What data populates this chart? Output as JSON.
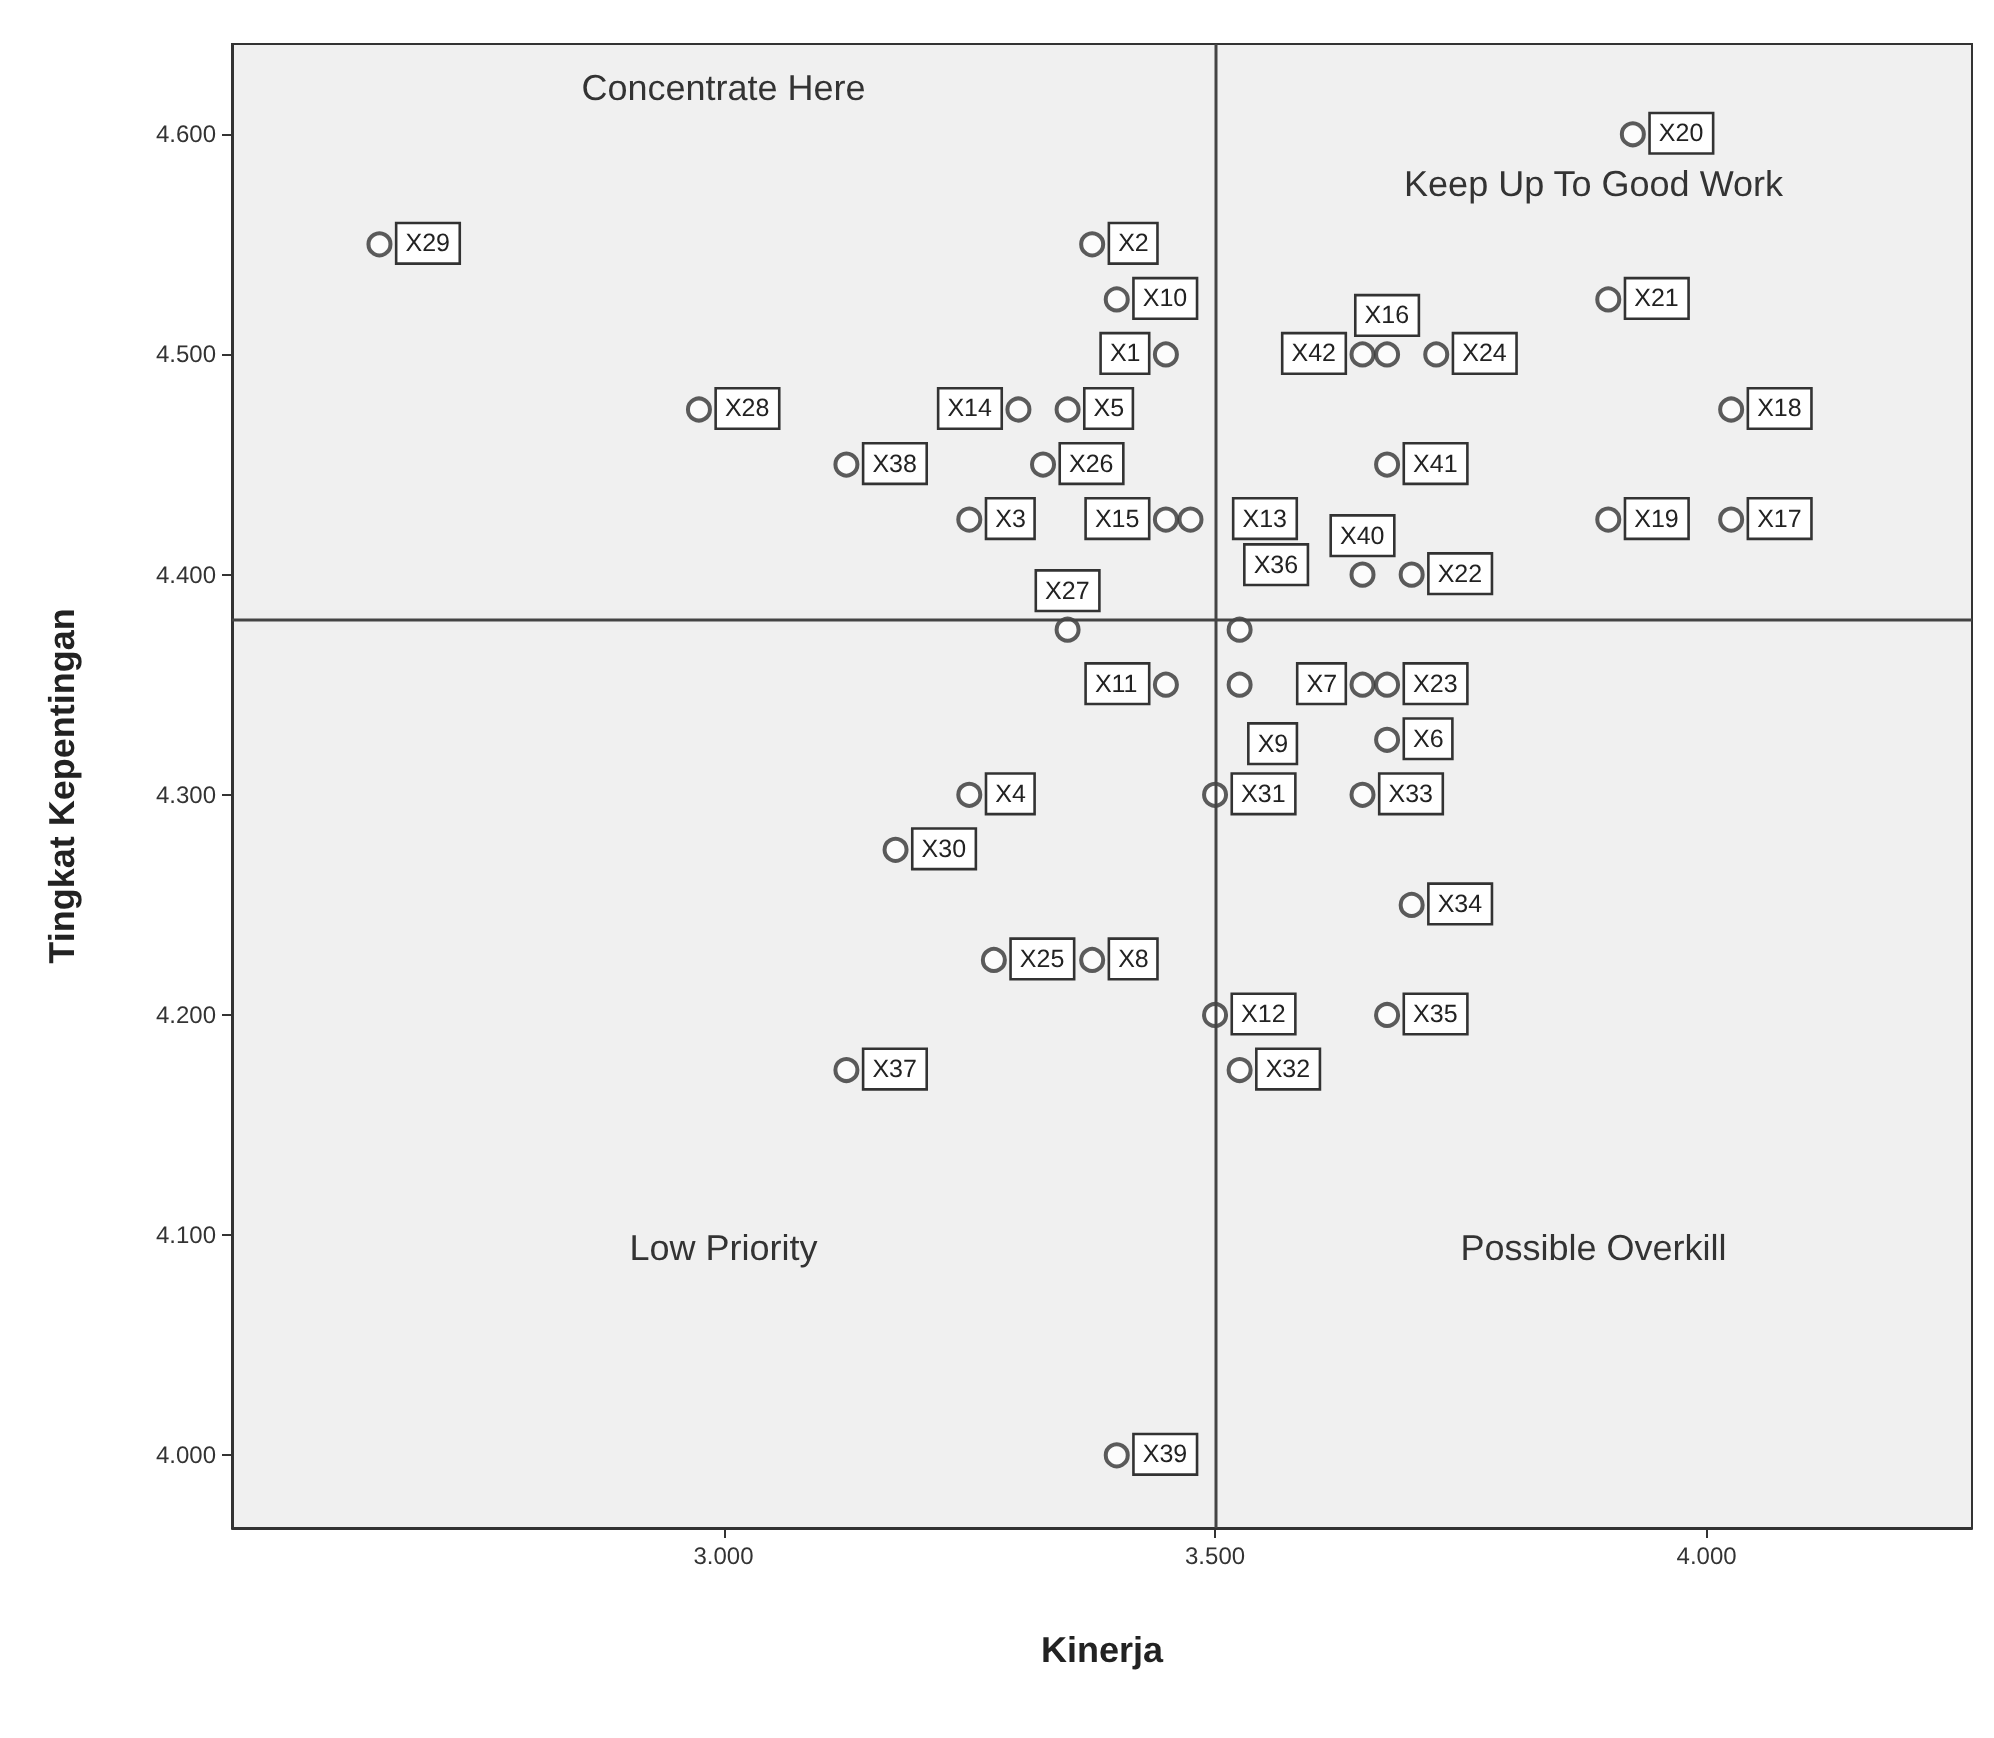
{
  "chart_data": {
    "type": "scatter",
    "xlabel": "Kinerja",
    "ylabel": "Tingkat Kepentingan",
    "x": [
      3.45,
      3.375,
      3.25,
      3.25,
      3.35,
      3.675,
      3.65,
      3.375,
      3.525,
      3.4,
      3.45,
      3.5,
      3.475,
      3.3,
      3.45,
      3.675,
      4.025,
      4.025,
      3.9,
      3.925,
      3.9,
      3.7,
      3.675,
      3.725,
      3.275,
      3.325,
      3.35,
      2.975,
      2.65,
      3.175,
      3.5,
      3.525,
      3.65,
      3.7,
      3.675,
      3.525,
      3.125,
      3.125,
      3.4,
      3.65,
      3.675,
      3.65
    ],
    "values": [
      4.5,
      4.55,
      4.425,
      4.3,
      4.475,
      4.325,
      4.35,
      4.225,
      4.35,
      4.525,
      4.35,
      4.2,
      4.425,
      4.475,
      4.425,
      4.5,
      4.425,
      4.475,
      4.425,
      4.6,
      4.525,
      4.4,
      4.35,
      4.5,
      4.225,
      4.45,
      4.375,
      4.475,
      4.55,
      4.275,
      4.3,
      4.175,
      4.3,
      4.25,
      4.2,
      4.375,
      4.175,
      4.45,
      4.0,
      4.4,
      4.45,
      4.5
    ],
    "color": "#333333",
    "marker": "circle",
    "grid": false,
    "xlim": [
      2.5,
      4.27
    ],
    "xticks": [
      {
        "value": 3,
        "label": "3.000"
      },
      {
        "value": 3.5,
        "label": "3.500"
      },
      {
        "value": 4,
        "label": "4.000"
      }
    ],
    "ylim": [
      3.967,
      4.641
    ],
    "yticks": [
      {
        "value": 4.0,
        "label": "4.000"
      },
      {
        "value": 4.1,
        "label": "4.100"
      },
      {
        "value": 4.2,
        "label": "4.200"
      },
      {
        "value": 4.3,
        "label": "4.300"
      },
      {
        "value": 4.4,
        "label": "4.400"
      },
      {
        "value": 4.5,
        "label": "4.500"
      },
      {
        "value": 4.6,
        "label": "4.600"
      }
    ],
    "ref_lines": [
      {
        "axis": "x",
        "value": 3.5,
        "color": "#444444"
      },
      {
        "axis": "y",
        "value": 4.38,
        "color": "#444444"
      }
    ],
    "annotations": [
      "Concentrate Here",
      "Keep Up To Good Work",
      "Low Priority",
      "Possible Overkill",
      {
        "text": "X1",
        "x": 3.45,
        "y": 4.5
      },
      {
        "text": "X2",
        "x": 3.375,
        "y": 4.55
      },
      {
        "text": "X3",
        "x": 3.25,
        "y": 4.425
      },
      {
        "text": "X4",
        "x": 3.25,
        "y": 4.3
      },
      {
        "text": "X5",
        "x": 3.35,
        "y": 4.475
      },
      {
        "text": "X6",
        "x": 3.675,
        "y": 4.325
      },
      {
        "text": "X7",
        "x": 3.65,
        "y": 4.35
      },
      {
        "text": "X8",
        "x": 3.375,
        "y": 4.225
      },
      {
        "text": "X9",
        "x": 3.525,
        "y": 4.35
      },
      {
        "text": "X10",
        "x": 3.4,
        "y": 4.525
      },
      {
        "text": "X11",
        "x": 3.45,
        "y": 4.35
      },
      {
        "text": "X12",
        "x": 3.5,
        "y": 4.2
      },
      {
        "text": "X13",
        "x": 3.475,
        "y": 4.425
      },
      {
        "text": "X14",
        "x": 3.3,
        "y": 4.475
      },
      {
        "text": "X15",
        "x": 3.45,
        "y": 4.425
      },
      {
        "text": "X16",
        "x": 3.675,
        "y": 4.5
      },
      {
        "text": "X17",
        "x": 4.025,
        "y": 4.425
      },
      {
        "text": "X18",
        "x": 4.025,
        "y": 4.475
      },
      {
        "text": "X19",
        "x": 3.9,
        "y": 4.425
      },
      {
        "text": "X20",
        "x": 3.925,
        "y": 4.6
      },
      {
        "text": "X21",
        "x": 3.9,
        "y": 4.525
      },
      {
        "text": "X22",
        "x": 3.7,
        "y": 4.4
      },
      {
        "text": "X23",
        "x": 3.675,
        "y": 4.35
      },
      {
        "text": "X24",
        "x": 3.725,
        "y": 4.5
      },
      {
        "text": "X25",
        "x": 3.275,
        "y": 4.225
      },
      {
        "text": "X26",
        "x": 3.325,
        "y": 4.45
      },
      {
        "text": "X27",
        "x": 3.35,
        "y": 4.375
      },
      {
        "text": "X28",
        "x": 2.975,
        "y": 4.475
      },
      {
        "text": "X29",
        "x": 2.65,
        "y": 4.55
      },
      {
        "text": "X30",
        "x": 3.175,
        "y": 4.275
      },
      {
        "text": "X31",
        "x": 3.5,
        "y": 4.3
      },
      {
        "text": "X32",
        "x": 3.525,
        "y": 4.175
      },
      {
        "text": "X33",
        "x": 3.65,
        "y": 4.3
      },
      {
        "text": "X34",
        "x": 3.7,
        "y": 4.25
      },
      {
        "text": "X35",
        "x": 3.675,
        "y": 4.2
      },
      {
        "text": "X36",
        "x": 3.525,
        "y": 4.375
      },
      {
        "text": "X37",
        "x": 3.125,
        "y": 4.175
      },
      {
        "text": "X38",
        "x": 3.125,
        "y": 4.45
      },
      {
        "text": "X39",
        "x": 3.4,
        "y": 4.0
      },
      {
        "text": "X40",
        "x": 3.65,
        "y": 4.4
      },
      {
        "text": "X41",
        "x": 3.675,
        "y": 4.45
      },
      {
        "text": "X42",
        "x": 3.65,
        "y": 4.5
      }
    ]
  }
}
